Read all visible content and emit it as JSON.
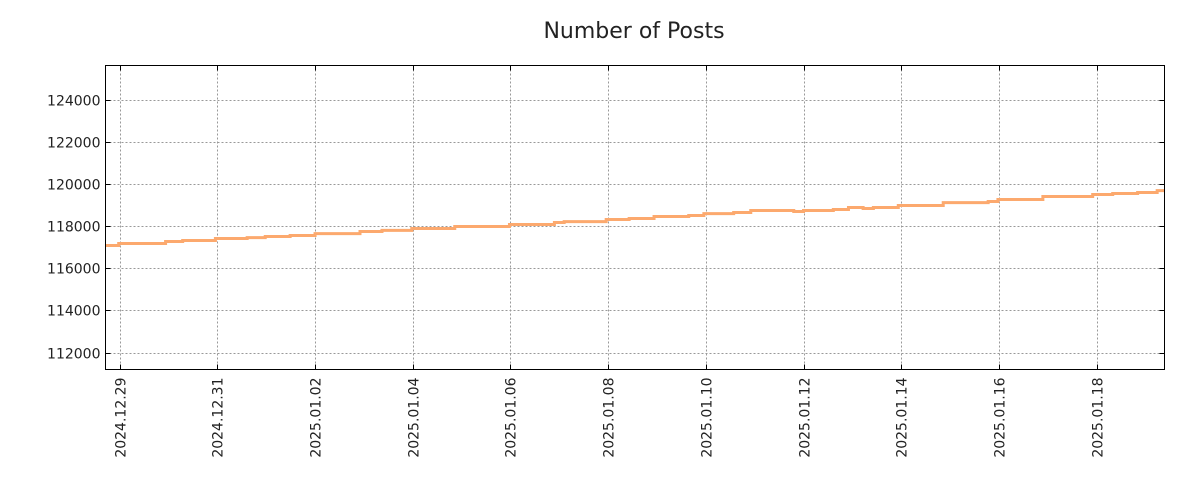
{
  "chart_data": {
    "type": "line",
    "title": "Number of Posts",
    "xlabel": "",
    "ylabel": "",
    "x_unit": "days since 2024.12.29",
    "xlim": [
      -0.29,
      21.39
    ],
    "ylim": [
      111194,
      125613
    ],
    "grid": true,
    "line_color": "#fca96e",
    "x_ticks": [
      {
        "value": 0,
        "label": "2024.12.29"
      },
      {
        "value": 2,
        "label": "2024.12.31"
      },
      {
        "value": 4,
        "label": "2025.01.02"
      },
      {
        "value": 6,
        "label": "2025.01.04"
      },
      {
        "value": 8,
        "label": "2025.01.06"
      },
      {
        "value": 10,
        "label": "2025.01.08"
      },
      {
        "value": 12,
        "label": "2025.01.10"
      },
      {
        "value": 14,
        "label": "2025.01.12"
      },
      {
        "value": 16,
        "label": "2025.01.14"
      },
      {
        "value": 18,
        "label": "2025.01.16"
      },
      {
        "value": 20,
        "label": "2025.01.18"
      }
    ],
    "y_ticks": [
      {
        "value": 112000,
        "label": "112000"
      },
      {
        "value": 114000,
        "label": "114000"
      },
      {
        "value": 116000,
        "label": "116000"
      },
      {
        "value": 118000,
        "label": "118000"
      },
      {
        "value": 120000,
        "label": "120000"
      },
      {
        "value": 122000,
        "label": "122000"
      },
      {
        "value": 124000,
        "label": "124000"
      }
    ],
    "series": [
      {
        "name": "Number of Posts",
        "step": true,
        "x": [
          -0.29,
          -0.02,
          0.94,
          1.29,
          1.96,
          2.61,
          2.98,
          3.49,
          4.0,
          4.92,
          5.37,
          5.98,
          6.86,
          7.98,
          8.9,
          9.1,
          9.96,
          10.43,
          10.94,
          11.65,
          11.96,
          12.57,
          12.92,
          13.8,
          14.0,
          14.61,
          14.92,
          15.22,
          15.43,
          15.94,
          16.86,
          17.78,
          17.98,
          18.9,
          19.92,
          20.33,
          20.84,
          21.24,
          21.39
        ],
        "y": [
          117075,
          117170,
          117265,
          117310,
          117405,
          117450,
          117500,
          117550,
          117640,
          117740,
          117790,
          117880,
          117975,
          118070,
          118165,
          118210,
          118310,
          118355,
          118450,
          118500,
          118590,
          118640,
          118735,
          118690,
          118735,
          118780,
          118875,
          118830,
          118875,
          118970,
          119110,
          119160,
          119255,
          119400,
          119495,
          119540,
          119590,
          119680,
          119680
        ]
      }
    ]
  }
}
